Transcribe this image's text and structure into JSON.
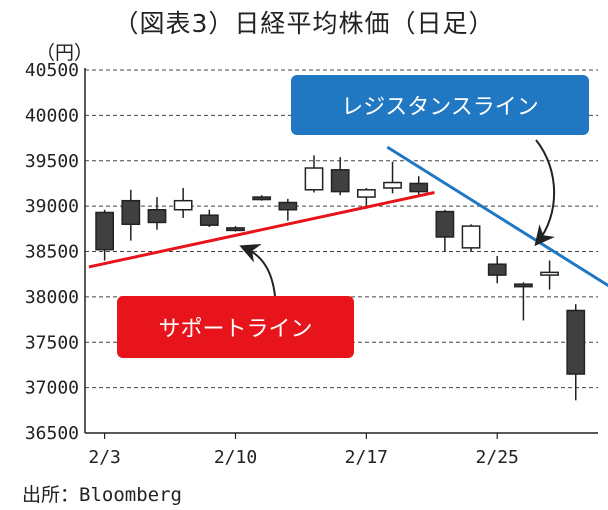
{
  "title": "（図表3）日経平均株価（日足）",
  "unit": "（円）",
  "source": "出所：Bloomberg",
  "colors": {
    "support": "#e8141c",
    "resistance": "#1f78c1",
    "candle_down": "#404040",
    "candle_up": "#ffffff"
  },
  "chart_data": {
    "type": "candlestick",
    "title": "（図表3）日経平均株価（日足）",
    "ylabel": "（円）",
    "ylim": [
      36500,
      40500
    ],
    "yticks": [
      40500,
      40000,
      39500,
      39000,
      38500,
      38000,
      37500,
      37000,
      36500
    ],
    "x_tick_labels": [
      {
        "label": "2/3",
        "index": 0
      },
      {
        "label": "2/10",
        "index": 5
      },
      {
        "label": "2/17",
        "index": 10
      },
      {
        "label": "2/25",
        "index": 15
      }
    ],
    "grid": "horizontal-dashed",
    "candles": [
      {
        "open": 38930,
        "high": 38960,
        "low": 38400,
        "close": 38520
      },
      {
        "open": 39060,
        "high": 39180,
        "low": 38620,
        "close": 38800
      },
      {
        "open": 38960,
        "high": 39100,
        "low": 38740,
        "close": 38820
      },
      {
        "open": 38960,
        "high": 39200,
        "low": 38870,
        "close": 39060
      },
      {
        "open": 38900,
        "high": 38960,
        "low": 38770,
        "close": 38790
      },
      {
        "open": 38760,
        "high": 38780,
        "low": 38720,
        "close": 38740
      },
      {
        "open": 39100,
        "high": 39120,
        "low": 39060,
        "close": 39080
      },
      {
        "open": 39040,
        "high": 39080,
        "low": 38840,
        "close": 38960
      },
      {
        "open": 39180,
        "high": 39560,
        "low": 39150,
        "close": 39420
      },
      {
        "open": 39400,
        "high": 39540,
        "low": 39120,
        "close": 39160
      },
      {
        "open": 39100,
        "high": 39200,
        "low": 38970,
        "close": 39180
      },
      {
        "open": 39200,
        "high": 39490,
        "low": 39140,
        "close": 39260
      },
      {
        "open": 39250,
        "high": 39330,
        "low": 39120,
        "close": 39160
      },
      {
        "open": 38940,
        "high": 38960,
        "low": 38500,
        "close": 38660
      },
      {
        "open": 38540,
        "high": 38800,
        "low": 38500,
        "close": 38780
      },
      {
        "open": 38360,
        "high": 38450,
        "low": 38150,
        "close": 38240
      },
      {
        "open": 38140,
        "high": 38160,
        "low": 37740,
        "close": 38120
      },
      {
        "open": 38240,
        "high": 38400,
        "low": 38080,
        "close": 38270
      },
      {
        "open": 37850,
        "high": 37920,
        "low": 36860,
        "close": 37150
      }
    ],
    "trendlines": [
      {
        "label": "サポートライン",
        "color": "#e8141c",
        "from": {
          "index": -0.6,
          "value": 38330
        },
        "to": {
          "index": 12.6,
          "value": 39150
        }
      },
      {
        "label": "レジスタンスライン",
        "color": "#1f78c1",
        "from": {
          "index": 10.8,
          "value": 39650
        },
        "to": {
          "index": 19.6,
          "value": 38060
        }
      }
    ]
  },
  "callouts": {
    "resistance": "レジスタンスライン",
    "support": "サポートライン"
  }
}
